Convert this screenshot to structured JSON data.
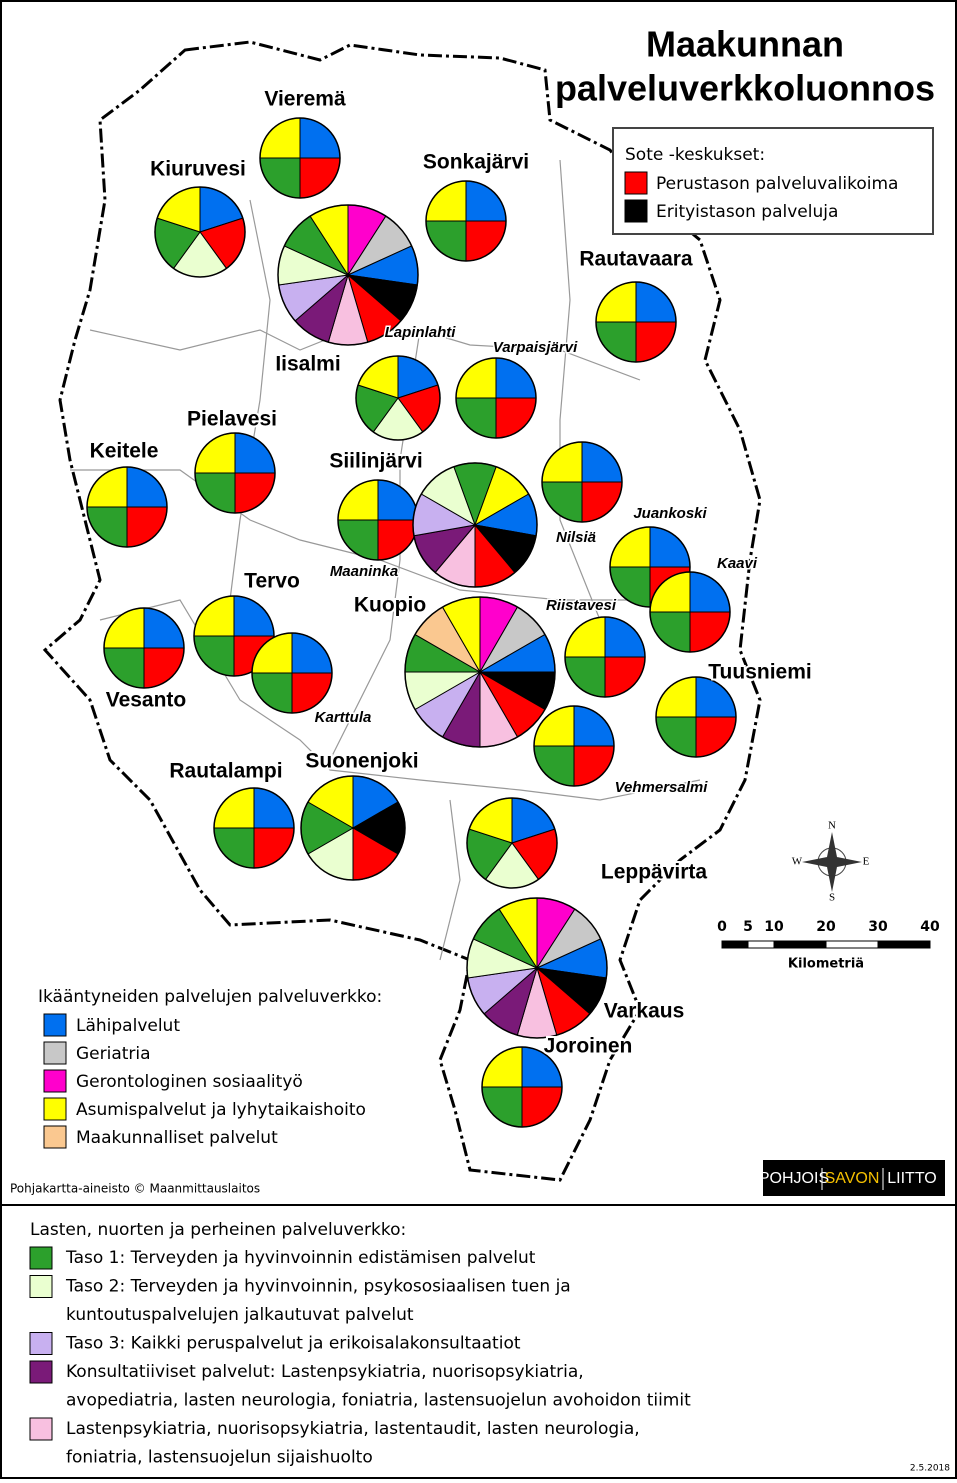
{
  "title": [
    "Maakunnan",
    "palveluverkkoluonnos"
  ],
  "sote_legend": {
    "title": "Sote -keskukset:",
    "items": [
      {
        "label": "Perustason palveluvalikoima",
        "color": "#ff0000"
      },
      {
        "label": "Erityistason palveluja",
        "color": "#000000"
      }
    ]
  },
  "places": [
    "Vieremä",
    "Kiuruvesi",
    "Sonkajärvi",
    "Rautavaara",
    "Iisalmi",
    "Lapinlahti",
    "Varpaisjärvi",
    "Pielavesi",
    "Keitele",
    "Siilinjärvi",
    "Nilsiä",
    "Juankoski",
    "Kaavi",
    "Maaninka",
    "Tervo",
    "Kuopio",
    "Riistavesi",
    "Vesanto",
    "Karttula",
    "Tuusniemi",
    "Vehmersalmi",
    "Rautalampi",
    "Suonenjoki",
    "Leppävirta",
    "Varkaus",
    "Joroinen"
  ],
  "elderly_legend": {
    "title": "Ikääntyneiden palvelujen palveluverkko:",
    "items": [
      {
        "label": "Lähipalvelut",
        "color": "#0070f0"
      },
      {
        "label": "Geriatria",
        "color": "#c8c8c8"
      },
      {
        "label": "Gerontologinen sosiaalityö",
        "color": "#ff00cc"
      },
      {
        "label": "Asumispalvelut ja lyhytaikaishoito",
        "color": "#ffff00"
      },
      {
        "label": "Maakunnalliset palvelut",
        "color": "#fac890"
      }
    ]
  },
  "children_legend": {
    "title": "Lasten, nuorten ja perheinen palveluverkko:",
    "items": [
      {
        "lines": [
          "Taso 1: Terveyden ja hyvinvoinnin edistämisen palvelut"
        ],
        "color": "#2ca02c"
      },
      {
        "lines": [
          "Taso 2: Terveyden ja hyvinvoinnin, psykososiaalisen tuen ja",
          "kuntoutuspalvelujen jalkautuvat palvelut"
        ],
        "color": "#eaffd0"
      },
      {
        "lines": [
          "Taso 3: Kaikki peruspalvelut ja erikoisalakonsultaatiot"
        ],
        "color": "#c8b0f0"
      },
      {
        "lines": [
          "Konsultatiiviset palvelut: Lastenpsykiatria, nuorisopsykiatria,",
          "avopediatria, lasten neurologia, foniatria, lastensuojelun avohoidon tiimit"
        ],
        "color": "#7a1a78"
      },
      {
        "lines": [
          "Lastenpsykiatria, nuorisopsykiatria, lastentaudit, lasten neurologia,",
          "foniatria, lastensuojelun sijaishuolto"
        ],
        "color": "#f8c0e0"
      }
    ]
  },
  "scale": {
    "ticks": [
      0,
      5,
      10,
      20,
      30,
      40
    ],
    "unit": "Kilometriä"
  },
  "compass": [
    "N",
    "E",
    "S",
    "W"
  ],
  "credit": "Pohjakartta-aineisto © Maanmittauslaitos",
  "logo": [
    "POHJOIS",
    "SAVON",
    "LIITTO"
  ],
  "date": "2.5.2018"
}
